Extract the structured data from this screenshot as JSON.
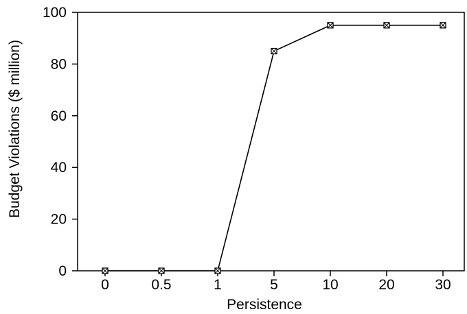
{
  "chart_data": {
    "type": "line",
    "xlabel": "Persistence",
    "ylabel": "Budget Violations ($ million)",
    "categories": [
      "0",
      "0.5",
      "1",
      "5",
      "10",
      "20",
      "30"
    ],
    "series": [
      {
        "values": [
          0,
          0,
          0,
          85,
          95,
          95,
          95
        ]
      }
    ],
    "ylim": [
      0,
      100
    ],
    "yticks": [
      "0",
      "20",
      "40",
      "60",
      "80",
      "100"
    ],
    "grid": false,
    "marker": "square-with-x",
    "line_color": "#000000"
  }
}
